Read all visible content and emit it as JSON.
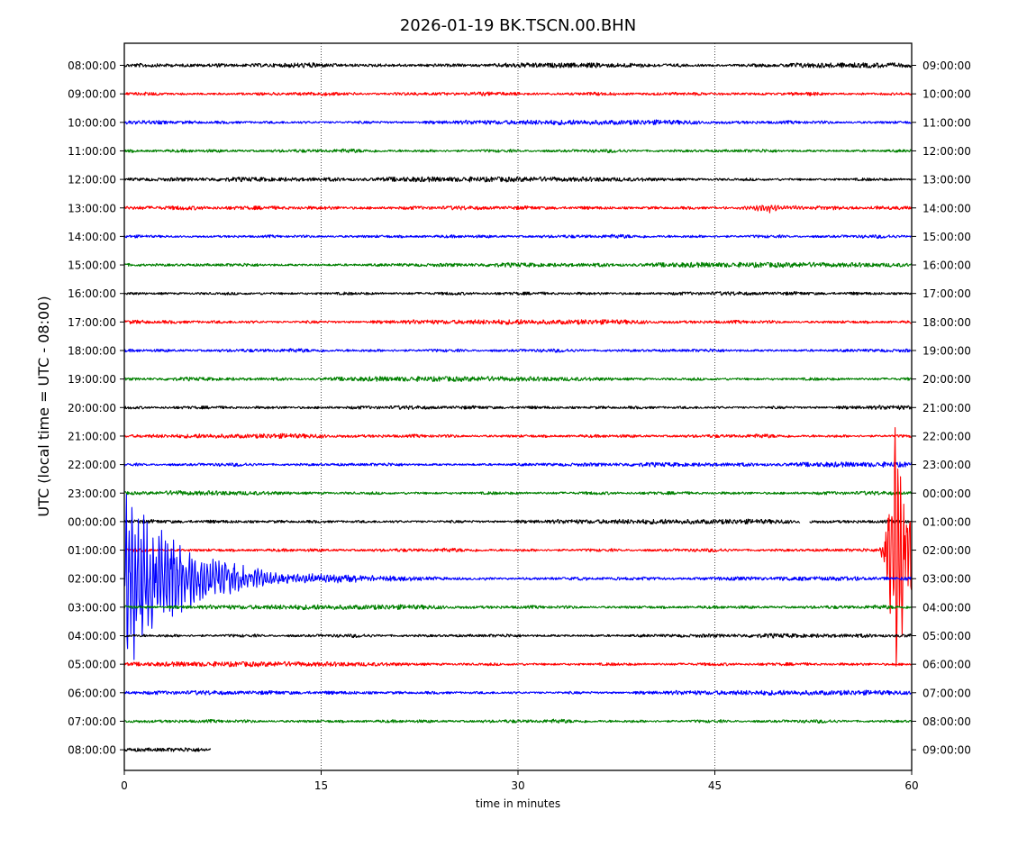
{
  "chart_data": {
    "type": "line",
    "title": "2026-01-19 BK.TSCN.00.BHN",
    "xlabel": "time in minutes",
    "ylabel": "UTC (local time = UTC - 08:00)",
    "xlim": [
      0,
      60
    ],
    "x_ticks": [
      0,
      15,
      30,
      45,
      60
    ],
    "vertical_grid_at": [
      15,
      30,
      45
    ],
    "grid_style": "dotted",
    "color_cycle": [
      "#000000",
      "#ff0000",
      "#0000ff",
      "#008000"
    ],
    "rows_left_labels": [
      "08:00:00",
      "09:00:00",
      "10:00:00",
      "11:00:00",
      "12:00:00",
      "13:00:00",
      "14:00:00",
      "15:00:00",
      "16:00:00",
      "17:00:00",
      "18:00:00",
      "19:00:00",
      "20:00:00",
      "21:00:00",
      "22:00:00",
      "23:00:00",
      "00:00:00",
      "01:00:00",
      "02:00:00",
      "03:00:00",
      "04:00:00",
      "05:00:00",
      "06:00:00",
      "07:00:00",
      "08:00:00"
    ],
    "rows_right_labels": [
      "09:00:00",
      "10:00:00",
      "11:00:00",
      "12:00:00",
      "13:00:00",
      "14:00:00",
      "15:00:00",
      "16:00:00",
      "17:00:00",
      "18:00:00",
      "19:00:00",
      "20:00:00",
      "21:00:00",
      "22:00:00",
      "23:00:00",
      "00:00:00",
      "01:00:00",
      "02:00:00",
      "03:00:00",
      "04:00:00",
      "05:00:00",
      "06:00:00",
      "07:00:00",
      "08:00:00",
      "09:00:00"
    ],
    "trace_end_minutes": {
      "24": 6.6
    },
    "data_gaps": [
      {
        "row": 16,
        "start_min": 51.5,
        "end_min": 52.2
      }
    ],
    "events": [
      {
        "row": 18,
        "start_min": 0.0,
        "peak_min": 0.1,
        "decay_min": 10.0,
        "color": "#0000ff",
        "peak_row_span": 3.5
      },
      {
        "row": 17,
        "start_min": 57.3,
        "peak_min": 58.9,
        "decay_min": 2.5,
        "color": "#ff0000",
        "peak_row_span": 5.5
      },
      {
        "row": 5,
        "start_min": 45.0,
        "peak_min": 49.0,
        "decay_min": 6.0,
        "color": "#ff0000",
        "peak_row_span": 0.15
      }
    ]
  }
}
